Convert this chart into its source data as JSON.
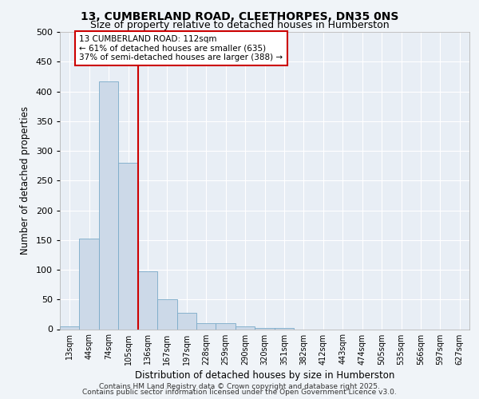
{
  "title1": "13, CUMBERLAND ROAD, CLEETHORPES, DN35 0NS",
  "title2": "Size of property relative to detached houses in Humberston",
  "xlabel": "Distribution of detached houses by size in Humberston",
  "ylabel": "Number of detached properties",
  "bar_labels": [
    "13sqm",
    "44sqm",
    "74sqm",
    "105sqm",
    "136sqm",
    "167sqm",
    "197sqm",
    "228sqm",
    "259sqm",
    "290sqm",
    "320sqm",
    "351sqm",
    "382sqm",
    "412sqm",
    "443sqm",
    "474sqm",
    "505sqm",
    "535sqm",
    "566sqm",
    "597sqm",
    "627sqm"
  ],
  "bar_values": [
    5,
    152,
    417,
    280,
    97,
    50,
    28,
    10,
    10,
    5,
    2,
    2,
    0,
    0,
    0,
    0,
    0,
    0,
    0,
    0,
    0
  ],
  "bar_color": "#ccd9e8",
  "bar_edge_color": "#7aaac8",
  "vline_color": "#cc0000",
  "annotation_text": "13 CUMBERLAND ROAD: 112sqm\n← 61% of detached houses are smaller (635)\n37% of semi-detached houses are larger (388) →",
  "annotation_box_color": "#ffffff",
  "annotation_box_edge": "#cc0000",
  "ylim": [
    0,
    500
  ],
  "yticks": [
    0,
    50,
    100,
    150,
    200,
    250,
    300,
    350,
    400,
    450,
    500
  ],
  "bg_color": "#f0f4f8",
  "plot_bg_color": "#e8eef5",
  "grid_color": "#ffffff",
  "footer1": "Contains HM Land Registry data © Crown copyright and database right 2025.",
  "footer2": "Contains public sector information licensed under the Open Government Licence v3.0."
}
